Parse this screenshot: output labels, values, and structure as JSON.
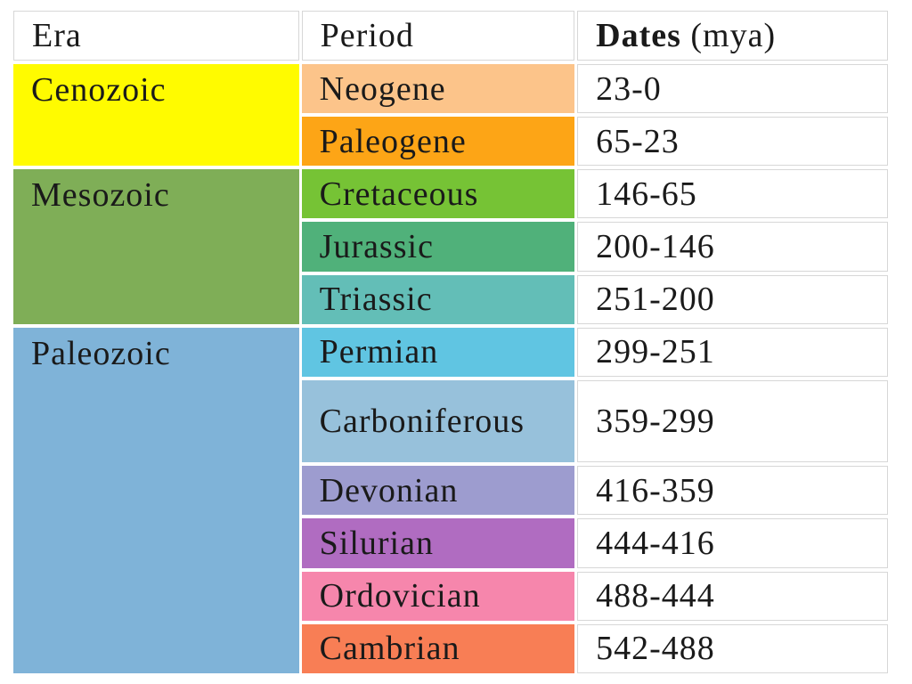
{
  "header": {
    "era": "Era",
    "period": "Period",
    "dates_main": "Dates",
    "dates_unit": "(mya)"
  },
  "eras": [
    {
      "name": "Cenozoic",
      "color": "#fffb00"
    },
    {
      "name": "Mesozoic",
      "color": "#7fae57"
    },
    {
      "name": "Paleozoic",
      "color": "#7fb3d8"
    }
  ],
  "periods": [
    {
      "name": "Neogene",
      "dates": "23-0",
      "color": "#fcc48a"
    },
    {
      "name": "Paleogene",
      "dates": "65-23",
      "color": "#fda516"
    },
    {
      "name": "Cretaceous",
      "dates": "146-65",
      "color": "#76c335"
    },
    {
      "name": "Jurassic",
      "dates": "200-146",
      "color": "#50b17a"
    },
    {
      "name": "Triassic",
      "dates": "251-200",
      "color": "#63beb7"
    },
    {
      "name": "Permian",
      "dates": "299-251",
      "color": "#60c5e2"
    },
    {
      "name": "Carboniferous",
      "dates": "359-299",
      "color": "#97c1db"
    },
    {
      "name": "Devonian",
      "dates": "416-359",
      "color": "#9d9ccf"
    },
    {
      "name": "Silurian",
      "dates": "444-416",
      "color": "#b06cc1"
    },
    {
      "name": "Ordovician",
      "dates": "488-444",
      "color": "#f686ac"
    },
    {
      "name": "Cambrian",
      "dates": "542-488",
      "color": "#f87e55"
    }
  ]
}
